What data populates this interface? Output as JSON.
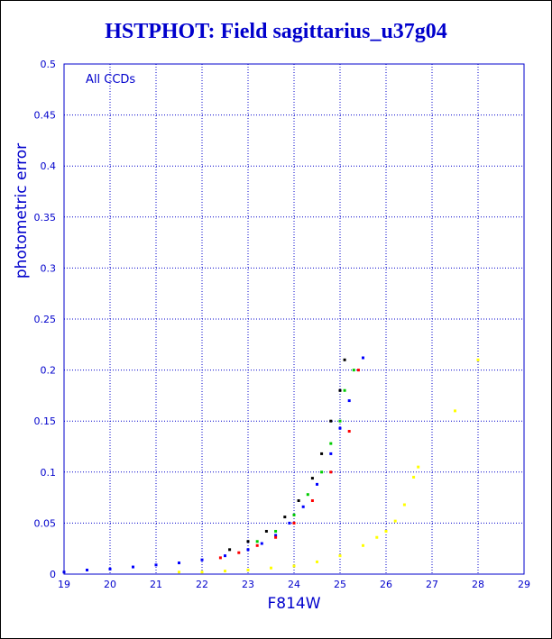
{
  "chart_data": {
    "type": "scatter",
    "title": "HSTPHOT: Field sagittarius_u37g04",
    "xlabel": "F814W",
    "ylabel": "photometric error",
    "annotation": "All CCDs",
    "xlim": [
      19,
      29
    ],
    "ylim": [
      0,
      0.5
    ],
    "x_ticks": [
      "19",
      "20",
      "21",
      "22",
      "23",
      "24",
      "25",
      "26",
      "27",
      "28",
      "29"
    ],
    "y_ticks": [
      "0",
      "0.05",
      "0.1",
      "0.15",
      "0.2",
      "0.25",
      "0.3",
      "0.35",
      "0.4",
      "0.45",
      "0.5"
    ],
    "grid": true,
    "colors": {
      "axis": "#0000cc",
      "grid": "#0000cc"
    },
    "series": [
      {
        "color": "#0000ff",
        "x": [
          19.0,
          19.5,
          20.0,
          20.5,
          21.0,
          21.5,
          22.0,
          22.5,
          23.0,
          23.3,
          23.6,
          23.9,
          24.2,
          24.5,
          24.8,
          25.0,
          25.2,
          25.5
        ],
        "y": [
          0.002,
          0.004,
          0.005,
          0.007,
          0.009,
          0.011,
          0.014,
          0.018,
          0.024,
          0.03,
          0.038,
          0.05,
          0.066,
          0.088,
          0.118,
          0.143,
          0.17,
          0.212
        ]
      },
      {
        "color": "#000000",
        "x": [
          22.6,
          23.0,
          23.4,
          23.8,
          24.1,
          24.4,
          24.6,
          24.8,
          25.0,
          25.1
        ],
        "y": [
          0.024,
          0.032,
          0.042,
          0.056,
          0.072,
          0.094,
          0.118,
          0.15,
          0.18,
          0.21
        ]
      },
      {
        "color": "#ff0000",
        "x": [
          22.4,
          22.8,
          23.2,
          23.6,
          24.0,
          24.4,
          24.8,
          25.2,
          25.4
        ],
        "y": [
          0.016,
          0.021,
          0.028,
          0.036,
          0.05,
          0.072,
          0.1,
          0.14,
          0.2
        ]
      },
      {
        "color": "#00cc00",
        "x": [
          23.2,
          23.6,
          24.0,
          24.3,
          24.6,
          24.8,
          25.0,
          25.1,
          25.3
        ],
        "y": [
          0.032,
          0.042,
          0.058,
          0.078,
          0.1,
          0.128,
          0.15,
          0.18,
          0.2
        ]
      },
      {
        "color": "#ffff00",
        "x": [
          21.5,
          22.0,
          22.5,
          23.0,
          23.5,
          24.0,
          24.5,
          25.0,
          25.5,
          25.8,
          26.0,
          26.2,
          26.4,
          26.6,
          26.7,
          27.5,
          28.0
        ],
        "y": [
          0.002,
          0.002,
          0.003,
          0.004,
          0.006,
          0.008,
          0.012,
          0.018,
          0.028,
          0.036,
          0.042,
          0.052,
          0.068,
          0.095,
          0.105,
          0.16,
          0.21
        ]
      }
    ]
  }
}
